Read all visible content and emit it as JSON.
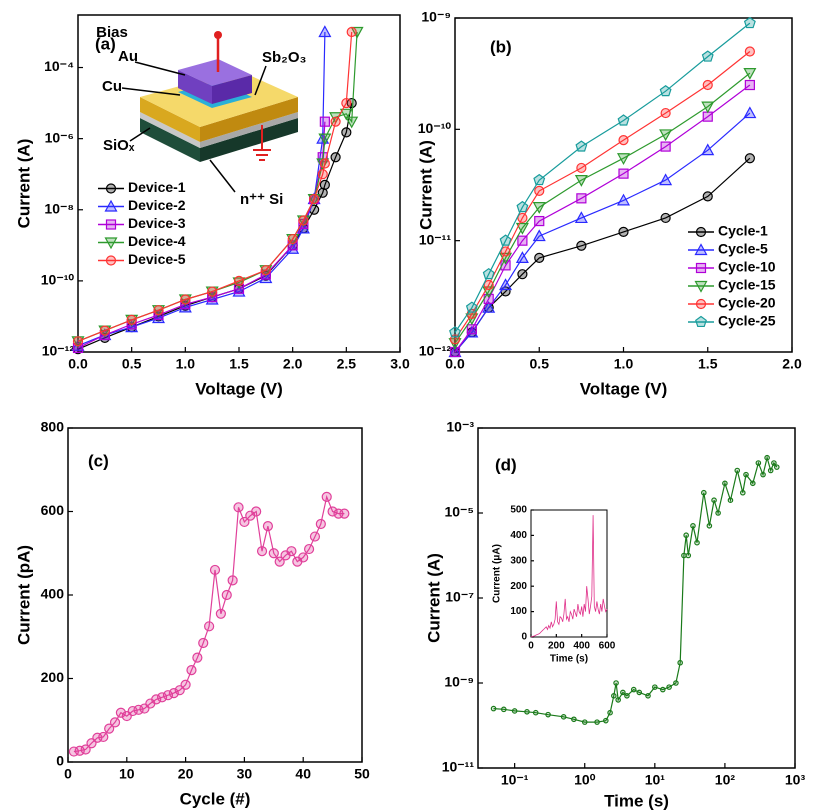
{
  "chart_data": [
    {
      "type": "line",
      "panel_label": "(a)",
      "xlabel": "Voltage (V)",
      "ylabel": "Current (A)",
      "yscale": "log",
      "legend": "center left",
      "annotations": [
        "Bias",
        "Au",
        "Cu",
        "Sb₂O₃",
        "SiOₓ",
        "n⁺⁺ Si"
      ],
      "xlim": [
        0,
        3.0
      ],
      "xticks": [
        {
          "value": 0,
          "label": "0.0"
        },
        {
          "value": 0.5,
          "label": "0.5"
        },
        {
          "value": 1,
          "label": "1.0"
        },
        {
          "value": 1.5,
          "label": "1.5"
        },
        {
          "value": 2,
          "label": "2.0"
        },
        {
          "value": 2.5,
          "label": "2.5"
        },
        {
          "value": 3,
          "label": "3.0"
        }
      ],
      "ylim": [
        1e-12,
        0.003
      ],
      "yticks": [
        {
          "value": 1e-12,
          "label": "10⁻¹²"
        },
        {
          "value": 1e-10,
          "label": "10⁻¹⁰"
        },
        {
          "value": 1e-08,
          "label": "10⁻⁸"
        },
        {
          "value": 1e-06,
          "label": "10⁻⁶"
        },
        {
          "value": 0.0001,
          "label": "10⁻⁴"
        }
      ],
      "x": [
        0,
        0.25,
        0.5,
        0.75,
        1.0,
        1.25,
        1.5,
        1.75,
        2.0,
        2.1,
        2.2,
        2.28,
        2.3,
        2.4,
        2.5,
        2.55,
        2.6
      ],
      "series": [
        {
          "name": "Device-1",
          "color": "#000000",
          "marker": "circle",
          "values": [
            1.2e-12,
            2.5e-12,
            5e-12,
            1e-11,
            2e-11,
            3.5e-11,
            6e-11,
            1.4e-10,
            1e-09,
            3e-09,
            1e-08,
            3e-08,
            5e-08,
            3e-07,
            1.5e-06,
            1e-05,
            null
          ]
        },
        {
          "name": "Device-2",
          "color": "#2a2aff",
          "marker": "triangle-up",
          "values": [
            1.5e-12,
            3e-12,
            5e-12,
            9e-12,
            1.8e-11,
            3e-11,
            5e-11,
            1.2e-10,
            8e-10,
            3e-09,
            2e-08,
            1e-06,
            0.001,
            null,
            null,
            null,
            null
          ]
        },
        {
          "name": "Device-3",
          "color": "#b000d8",
          "marker": "square",
          "values": [
            1.3e-12,
            3e-12,
            6e-12,
            1.1e-11,
            2.2e-11,
            3.5e-11,
            6e-11,
            1.5e-10,
            1e-09,
            4e-09,
            2e-08,
            3e-07,
            3e-06,
            null,
            null,
            null,
            null
          ]
        },
        {
          "name": "Device-4",
          "color": "#2e9a2e",
          "marker": "triangle-down",
          "values": [
            2e-12,
            4e-12,
            8e-12,
            1.5e-11,
            3e-11,
            5e-11,
            9e-11,
            2e-10,
            1.5e-09,
            5e-09,
            2e-08,
            2e-07,
            1e-06,
            4e-06,
            5e-06,
            3e-06,
            0.001
          ]
        },
        {
          "name": "Device-5",
          "color": "#ff3333",
          "marker": "circle",
          "values": [
            2e-12,
            4e-12,
            8e-12,
            1.5e-11,
            3e-11,
            5e-11,
            1e-10,
            2e-10,
            1.5e-09,
            5e-09,
            2e-08,
            1e-07,
            2e-07,
            3e-06,
            1e-05,
            0.001,
            null
          ]
        }
      ]
    },
    {
      "type": "line",
      "panel_label": "(b)",
      "xlabel": "Voltage (V)",
      "ylabel": "Current (A)",
      "yscale": "log",
      "legend": "lower right",
      "xlim": [
        0,
        2.0
      ],
      "xticks": [
        {
          "value": 0,
          "label": "0.0"
        },
        {
          "value": 0.5,
          "label": "0.5"
        },
        {
          "value": 1,
          "label": "1.0"
        },
        {
          "value": 1.5,
          "label": "1.5"
        },
        {
          "value": 2,
          "label": "2.0"
        }
      ],
      "ylim": [
        1e-12,
        1e-09
      ],
      "yticks": [
        {
          "value": 1e-12,
          "label": "10⁻¹²"
        },
        {
          "value": 1e-11,
          "label": "10⁻¹¹"
        },
        {
          "value": 1e-10,
          "label": "10⁻¹⁰"
        },
        {
          "value": 1e-09,
          "label": "10⁻⁹"
        }
      ],
      "x": [
        0,
        0.1,
        0.2,
        0.3,
        0.4,
        0.5,
        0.75,
        1.0,
        1.25,
        1.5,
        1.75
      ],
      "series": [
        {
          "name": "Cycle-1",
          "color": "#000000",
          "marker": "circle",
          "values": [
            1e-12,
            1.5e-12,
            2.5e-12,
            3.5e-12,
            5e-12,
            7e-12,
            9e-12,
            1.2e-11,
            1.6e-11,
            2.5e-11,
            5.5e-11
          ]
        },
        {
          "name": "Cycle-5",
          "color": "#2a2aff",
          "marker": "triangle-up",
          "values": [
            1e-12,
            1.5e-12,
            2.5e-12,
            4e-12,
            7e-12,
            1.1e-11,
            1.6e-11,
            2.3e-11,
            3.5e-11,
            6.5e-11,
            1.4e-10
          ]
        },
        {
          "name": "Cycle-10",
          "color": "#b000d8",
          "marker": "square",
          "values": [
            1e-12,
            1.6e-12,
            3e-12,
            6e-12,
            1e-11,
            1.5e-11,
            2.4e-11,
            4e-11,
            7e-11,
            1.3e-10,
            2.5e-10
          ]
        },
        {
          "name": "Cycle-15",
          "color": "#2e9a2e",
          "marker": "triangle-down",
          "values": [
            1.2e-12,
            2e-12,
            3.5e-12,
            7e-12,
            1.3e-11,
            2e-11,
            3.5e-11,
            5.5e-11,
            9e-11,
            1.6e-10,
            3.2e-10
          ]
        },
        {
          "name": "Cycle-20",
          "color": "#ff3333",
          "marker": "circle",
          "values": [
            1.3e-12,
            2.2e-12,
            4e-12,
            8e-12,
            1.6e-11,
            2.8e-11,
            4.5e-11,
            8e-11,
            1.4e-10,
            2.5e-10,
            5e-10
          ]
        },
        {
          "name": "Cycle-25",
          "color": "#189c9c",
          "marker": "pentagon",
          "values": [
            1.5e-12,
            2.5e-12,
            5e-12,
            1e-11,
            2e-11,
            3.5e-11,
            7e-11,
            1.2e-10,
            2.2e-10,
            4.5e-10,
            9e-10
          ]
        }
      ]
    },
    {
      "type": "line",
      "panel_label": "(c)",
      "xlabel": "Cycle (#)",
      "ylabel": "Current (pA)",
      "xlim": [
        0,
        50
      ],
      "xticks": [
        0,
        10,
        20,
        30,
        40,
        50
      ],
      "ylim": [
        0,
        800
      ],
      "yticks": [
        0,
        200,
        400,
        600,
        800
      ],
      "x": [
        1,
        2,
        3,
        4,
        5,
        6,
        7,
        8,
        9,
        10,
        11,
        12,
        13,
        14,
        15,
        16,
        17,
        18,
        19,
        20,
        21,
        22,
        23,
        24,
        25,
        26,
        27,
        28,
        29,
        30,
        31,
        32,
        33,
        34,
        35,
        36,
        37,
        38,
        39,
        40,
        41,
        42,
        43,
        44,
        45,
        46,
        47
      ],
      "series": [
        {
          "color": "#e0409a",
          "marker": "circle",
          "values": [
            25,
            27,
            30,
            45,
            58,
            60,
            80,
            95,
            118,
            110,
            122,
            125,
            128,
            140,
            150,
            155,
            160,
            165,
            172,
            185,
            220,
            250,
            285,
            325,
            460,
            355,
            400,
            435,
            610,
            575,
            590,
            600,
            505,
            565,
            500,
            480,
            495,
            505,
            480,
            490,
            510,
            540,
            570,
            635,
            600,
            595,
            595
          ]
        }
      ]
    },
    {
      "type": "line",
      "panel_label": "(d)",
      "xlabel": "Time (s)",
      "ylabel": "Current (A)",
      "xscale": "log",
      "yscale": "log",
      "xlim": [
        0.03,
        1000
      ],
      "xticks": [
        {
          "value": 0.1,
          "label": "10⁻¹"
        },
        {
          "value": 1,
          "label": "10⁰"
        },
        {
          "value": 10,
          "label": "10¹"
        },
        {
          "value": 100,
          "label": "10²"
        },
        {
          "value": 1000,
          "label": "10³"
        }
      ],
      "ylim": [
        1e-11,
        0.001
      ],
      "yticks": [
        {
          "value": 1e-11,
          "label": "10⁻¹¹"
        },
        {
          "value": 1e-09,
          "label": "10⁻⁹"
        },
        {
          "value": 1e-07,
          "label": "10⁻⁷"
        },
        {
          "value": 1e-05,
          "label": "10⁻⁵"
        },
        {
          "value": 0.001,
          "label": "10⁻³"
        }
      ],
      "x": [
        0.05,
        0.07,
        0.1,
        0.15,
        0.2,
        0.3,
        0.5,
        0.7,
        1,
        1.5,
        2,
        2.3,
        2.6,
        2.8,
        3,
        3.5,
        4,
        5,
        6,
        8,
        10,
        13,
        16,
        20,
        23,
        26,
        28,
        30,
        35,
        40,
        50,
        60,
        70,
        80,
        100,
        120,
        150,
        180,
        200,
        250,
        300,
        350,
        400,
        450,
        500,
        550
      ],
      "series": [
        {
          "color": "#1a7a1a",
          "marker": "small-circle",
          "values": [
            2.5e-10,
            2.4e-10,
            2.2e-10,
            2.1e-10,
            2e-10,
            1.8e-10,
            1.6e-10,
            1.4e-10,
            1.2e-10,
            1.2e-10,
            1.3e-10,
            2e-10,
            5e-10,
            1e-09,
            4e-10,
            6e-10,
            5e-10,
            7e-10,
            6e-10,
            5e-10,
            8e-10,
            7e-10,
            8e-10,
            1e-09,
            3e-09,
            1e-06,
            3e-06,
            1e-06,
            5e-06,
            2e-06,
            3e-05,
            5e-06,
            2e-05,
            1e-05,
            5e-05,
            2e-05,
            0.0001,
            3e-05,
            8e-05,
            5e-05,
            0.00015,
            8e-05,
            0.0002,
            0.0001,
            0.00015,
            0.00012
          ]
        }
      ]
    },
    {
      "type": "line",
      "xlabel": "Time (s)",
      "ylabel": "Current (μA)",
      "xlim": [
        0,
        600
      ],
      "xticks": [
        0,
        200,
        400,
        600
      ],
      "ylim": [
        0,
        500
      ],
      "yticks": [
        0,
        100,
        200,
        300,
        400,
        500
      ],
      "x": [
        0,
        10,
        20,
        30,
        40,
        50,
        60,
        70,
        80,
        90,
        100,
        110,
        120,
        130,
        140,
        150,
        160,
        170,
        180,
        190,
        200,
        210,
        220,
        230,
        240,
        250,
        260,
        270,
        280,
        290,
        300,
        310,
        320,
        330,
        340,
        350,
        360,
        370,
        380,
        390,
        400,
        410,
        420,
        430,
        440,
        450,
        460,
        470,
        480,
        490,
        500,
        510,
        520,
        530,
        540,
        550,
        560,
        570,
        580,
        590,
        600
      ],
      "series": [
        {
          "color": "#e0308a",
          "values": [
            0,
            2,
            3,
            5,
            8,
            10,
            12,
            15,
            20,
            25,
            30,
            35,
            40,
            30,
            45,
            35,
            60,
            40,
            50,
            70,
            140,
            60,
            50,
            80,
            75,
            60,
            90,
            150,
            70,
            80,
            60,
            100,
            90,
            70,
            110,
            95,
            80,
            130,
            100,
            90,
            120,
            80,
            130,
            100,
            200,
            150,
            90,
            120,
            160,
            480,
            120,
            100,
            140,
            110,
            90,
            130,
            100,
            150,
            120,
            100,
            110
          ]
        }
      ]
    }
  ]
}
